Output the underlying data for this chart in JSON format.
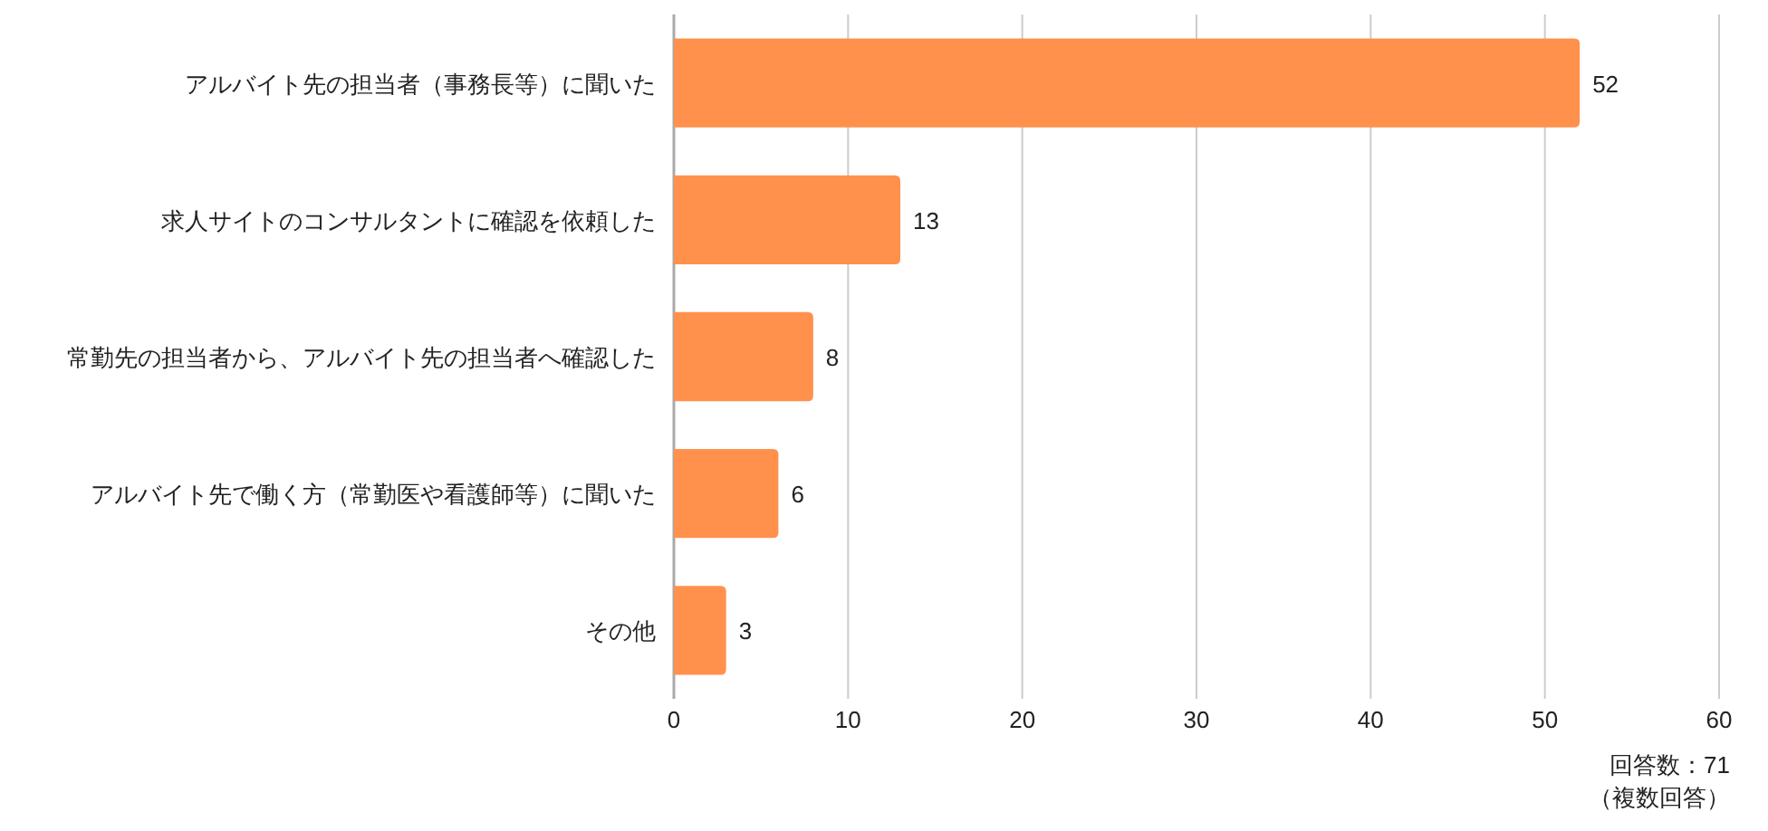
{
  "chart_data": {
    "type": "bar",
    "orientation": "horizontal",
    "categories": [
      "アルバイト先の担当者（事務長等）に聞いた",
      "求人サイトのコンサルタントに確認を依頼した",
      "常勤先の担当者から、アルバイト先の担当者へ確認した",
      "アルバイト先で働く方（常勤医や看護師等）に聞いた",
      "その他"
    ],
    "values": [
      52,
      13,
      8,
      6,
      3
    ],
    "color": "#ff914d",
    "xlim": [
      0,
      60
    ],
    "xticks": [
      0,
      10,
      20,
      30,
      40,
      50,
      60
    ],
    "grid": "x",
    "data_labels": true,
    "annotations": [
      "回答数：71",
      "（複数回答）"
    ]
  }
}
